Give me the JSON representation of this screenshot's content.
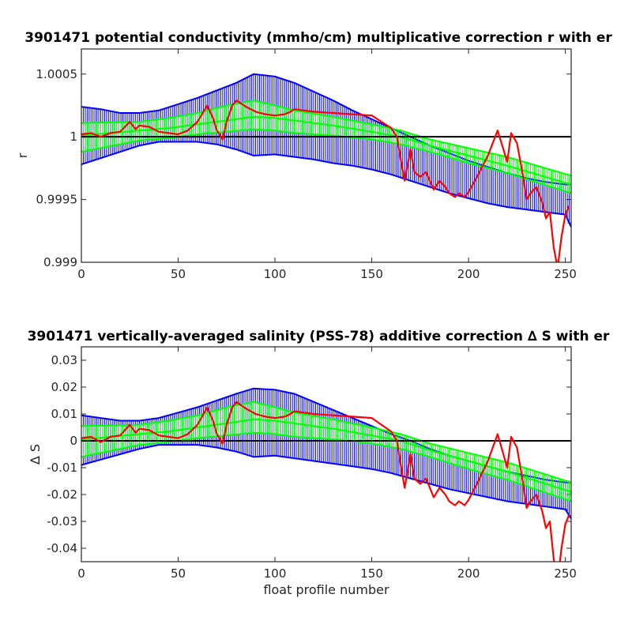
{
  "chart_data": [
    {
      "type": "line",
      "title": "3901471 potential conductivity (mmho/cm) multiplicative correction r with er",
      "xlabel": "",
      "ylabel": "r",
      "xlim": [
        0,
        253
      ],
      "ylim": [
        0.999,
        1.0007
      ],
      "xticks": [
        0,
        50,
        100,
        150,
        200,
        250
      ],
      "xtick_labels": [
        "0",
        "50",
        "100",
        "150",
        "200",
        "250"
      ],
      "yticks": [
        0.999,
        0.9995,
        1.0,
        1.0005
      ],
      "ytick_labels": [
        "0.999",
        "0.9995",
        "1",
        "1.0005"
      ],
      "reference_line": 1.0,
      "series": [
        {
          "role": "correction",
          "color": "#ff0000",
          "x": [
            0,
            5,
            10,
            15,
            20,
            25,
            28,
            30,
            35,
            40,
            45,
            50,
            55,
            60,
            65,
            68,
            70,
            73,
            75,
            78,
            80,
            85,
            90,
            95,
            100,
            105,
            108,
            110,
            120,
            130,
            140,
            150,
            155,
            160,
            163,
            165,
            167,
            170,
            172,
            175,
            178,
            180,
            182,
            185,
            188,
            190,
            193,
            195,
            198,
            200,
            205,
            210,
            215,
            218,
            220,
            222,
            225,
            228,
            230,
            232,
            235,
            238,
            240,
            242,
            244,
            246,
            248,
            250,
            252
          ],
          "y": [
            1.00002,
            1.00003,
            1.0,
            1.00003,
            1.00004,
            1.00012,
            1.00006,
            1.00009,
            1.00008,
            1.00004,
            1.00003,
            1.00002,
            1.00005,
            1.00012,
            1.00025,
            1.00015,
            1.00005,
            0.99998,
            1.00012,
            1.00025,
            1.00029,
            1.00024,
            1.0002,
            1.00018,
            1.00017,
            1.00018,
            1.0002,
            1.00022,
            1.0002,
            1.00019,
            1.00018,
            1.00017,
            1.00012,
            1.00007,
            1.0,
            0.99982,
            0.99965,
            0.9999,
            0.99972,
            0.99968,
            0.99972,
            0.99965,
            0.99958,
            0.99965,
            0.9996,
            0.99955,
            0.99952,
            0.99955,
            0.99952,
            0.99956,
            0.9997,
            0.99985,
            1.00005,
            0.9999,
            0.9998,
            1.00003,
            0.99995,
            0.9997,
            0.9995,
            0.99955,
            0.9996,
            0.99948,
            0.99935,
            0.9994,
            0.99912,
            0.99895,
            0.9992,
            0.99938,
            0.99945
          ]
        },
        {
          "role": "fit-mean",
          "color": "#00ff00",
          "x": [
            0,
            30,
            45,
            60,
            75,
            89,
            100,
            110,
            130,
            150,
            165,
            180,
            200,
            220,
            253
          ],
          "y": [
            1.00001,
            1.00005,
            1.00007,
            1.0001,
            1.00013,
            1.00016,
            1.00015,
            1.00013,
            1.00009,
            1.00004,
            1.0,
            0.99993,
            0.99985,
            0.99977,
            0.99962
          ]
        },
        {
          "role": "fit-spread-upper",
          "color": "#00ff00",
          "x": [
            0,
            30,
            45,
            60,
            75,
            89,
            100,
            110,
            130,
            150,
            165,
            180,
            200,
            220,
            253
          ],
          "y": [
            1.00011,
            1.00012,
            1.00015,
            1.00019,
            1.00025,
            1.00029,
            1.00025,
            1.00021,
            1.00016,
            1.0001,
            1.00005,
            0.99998,
            0.99991,
            0.99984,
            0.99969
          ]
        },
        {
          "role": "fit-spread-lower",
          "color": "#00ff00",
          "x": [
            0,
            30,
            45,
            60,
            75,
            89,
            100,
            110,
            130,
            150,
            165,
            180,
            200,
            220,
            253
          ],
          "y": [
            0.99988,
            0.99997,
            0.99999,
            1.00002,
            1.00004,
            1.00006,
            1.00005,
            1.00003,
            1.00001,
            0.99998,
            0.99994,
            0.99988,
            0.99979,
            0.99971,
            0.99955
          ]
        },
        {
          "role": "error-upper",
          "color": "#0000ff",
          "x": [
            0,
            10,
            20,
            30,
            40,
            50,
            60,
            70,
            80,
            89,
            100,
            110,
            120,
            130,
            140,
            150,
            160,
            170,
            180,
            190,
            200,
            210,
            220,
            230,
            240,
            250,
            253
          ],
          "y": [
            1.00024,
            1.00022,
            1.00019,
            1.00019,
            1.00021,
            1.00026,
            1.00031,
            1.00037,
            1.00043,
            1.0005,
            1.00048,
            1.00043,
            1.00036,
            1.00029,
            1.00021,
            1.00014,
            1.00007,
            1.0,
            0.99993,
            0.99987,
            0.99981,
            0.99976,
            0.99971,
            0.99967,
            0.99964,
            0.99962,
            0.99962
          ]
        },
        {
          "role": "error-lower",
          "color": "#0000ff",
          "x": [
            0,
            10,
            20,
            30,
            40,
            50,
            60,
            70,
            80,
            89,
            100,
            110,
            120,
            130,
            140,
            150,
            160,
            170,
            180,
            190,
            200,
            210,
            220,
            230,
            240,
            250,
            253
          ],
          "y": [
            0.99978,
            0.99983,
            0.99988,
            0.99993,
            0.99996,
            0.99996,
            0.99996,
            0.99994,
            0.9999,
            0.99985,
            0.99986,
            0.99984,
            0.99982,
            0.99979,
            0.99977,
            0.99974,
            0.9997,
            0.99965,
            0.9996,
            0.99955,
            0.99951,
            0.99947,
            0.99944,
            0.99942,
            0.9994,
            0.99938,
            0.99928
          ]
        }
      ]
    },
    {
      "type": "line",
      "title": "3901471 vertically-averaged salinity (PSS-78) additive correction ∆ S with er",
      "xlabel": "float profile number",
      "ylabel": "∆ S",
      "xlim": [
        0,
        253
      ],
      "ylim": [
        -0.045,
        0.035
      ],
      "xticks": [
        0,
        50,
        100,
        150,
        200,
        250
      ],
      "xtick_labels": [
        "0",
        "50",
        "100",
        "150",
        "200",
        "250"
      ],
      "yticks": [
        -0.04,
        -0.03,
        -0.02,
        -0.01,
        0,
        0.01,
        0.02,
        0.03
      ],
      "ytick_labels": [
        "-0.04",
        "-0.03",
        "-0.02",
        "-0.01",
        "0",
        "0.01",
        "0.02",
        "0.03"
      ],
      "reference_line": 0,
      "series": [
        {
          "role": "correction",
          "color": "#ff0000",
          "x": [
            0,
            5,
            10,
            15,
            20,
            25,
            28,
            30,
            35,
            40,
            45,
            50,
            55,
            60,
            65,
            68,
            70,
            73,
            75,
            78,
            80,
            85,
            90,
            95,
            100,
            105,
            108,
            110,
            120,
            130,
            140,
            150,
            155,
            160,
            163,
            165,
            167,
            170,
            172,
            175,
            178,
            180,
            182,
            185,
            188,
            190,
            193,
            195,
            198,
            200,
            205,
            210,
            215,
            218,
            220,
            222,
            225,
            228,
            230,
            232,
            235,
            238,
            240,
            242,
            244,
            246,
            248,
            250,
            252
          ],
          "y": [
            0.001,
            0.0015,
            -0.0005,
            0.0015,
            0.002,
            0.006,
            0.003,
            0.0045,
            0.004,
            0.002,
            0.0015,
            0.001,
            0.0025,
            0.006,
            0.0125,
            0.0075,
            0.0025,
            -0.001,
            0.006,
            0.0125,
            0.0145,
            0.012,
            0.01,
            0.009,
            0.0085,
            0.009,
            0.01,
            0.011,
            0.01,
            0.0095,
            0.009,
            0.0085,
            0.006,
            0.0035,
            0.0,
            -0.009,
            -0.0175,
            -0.005,
            -0.014,
            -0.016,
            -0.014,
            -0.0175,
            -0.021,
            -0.0175,
            -0.02,
            -0.0225,
            -0.024,
            -0.0225,
            -0.024,
            -0.022,
            -0.015,
            -0.0075,
            0.0025,
            -0.005,
            -0.01,
            0.0015,
            -0.0025,
            -0.015,
            -0.025,
            -0.0225,
            -0.02,
            -0.026,
            -0.0325,
            -0.03,
            -0.044,
            -0.0525,
            -0.04,
            -0.031,
            -0.0275
          ]
        },
        {
          "role": "fit-mean",
          "color": "#00ff00",
          "x": [
            0,
            30,
            45,
            60,
            75,
            89,
            100,
            110,
            130,
            150,
            165,
            180,
            200,
            220,
            253
          ],
          "y": [
            0.0005,
            0.0025,
            0.0035,
            0.005,
            0.0065,
            0.008,
            0.0075,
            0.0065,
            0.0045,
            0.002,
            0.0,
            -0.0035,
            -0.0075,
            -0.0115,
            -0.019
          ]
        },
        {
          "role": "fit-spread-upper",
          "color": "#00ff00",
          "x": [
            0,
            30,
            45,
            60,
            75,
            89,
            100,
            110,
            130,
            150,
            165,
            180,
            200,
            220,
            253
          ],
          "y": [
            0.0055,
            0.006,
            0.0075,
            0.0095,
            0.0125,
            0.0145,
            0.0125,
            0.0105,
            0.008,
            0.005,
            0.0025,
            -0.001,
            -0.0045,
            -0.008,
            -0.0155
          ]
        },
        {
          "role": "fit-spread-lower",
          "color": "#00ff00",
          "x": [
            0,
            30,
            45,
            60,
            75,
            89,
            100,
            110,
            130,
            150,
            165,
            180,
            200,
            220,
            253
          ],
          "y": [
            -0.006,
            -0.0015,
            -0.0005,
            0.001,
            0.002,
            0.003,
            0.0025,
            0.0015,
            0.0005,
            -0.001,
            -0.003,
            -0.006,
            -0.0105,
            -0.0145,
            -0.0225
          ]
        },
        {
          "role": "error-upper",
          "color": "#0000ff",
          "x": [
            0,
            10,
            20,
            30,
            40,
            50,
            60,
            70,
            80,
            89,
            100,
            110,
            120,
            130,
            140,
            150,
            160,
            170,
            180,
            190,
            200,
            210,
            220,
            230,
            240,
            250,
            253
          ],
          "y": [
            0.0095,
            0.0085,
            0.0075,
            0.0075,
            0.0085,
            0.0105,
            0.0125,
            0.015,
            0.0175,
            0.0195,
            0.019,
            0.0175,
            0.0145,
            0.0115,
            0.0085,
            0.0055,
            0.0025,
            0.0,
            -0.003,
            -0.0055,
            -0.0075,
            -0.0095,
            -0.0115,
            -0.013,
            -0.0145,
            -0.0155,
            -0.0155
          ]
        },
        {
          "role": "error-lower",
          "color": "#0000ff",
          "x": [
            0,
            10,
            20,
            30,
            40,
            50,
            60,
            70,
            80,
            89,
            100,
            110,
            120,
            130,
            140,
            150,
            160,
            170,
            180,
            190,
            200,
            210,
            220,
            230,
            240,
            250,
            253
          ],
          "y": [
            -0.009,
            -0.007,
            -0.005,
            -0.003,
            -0.0015,
            -0.0015,
            -0.0015,
            -0.0025,
            -0.004,
            -0.006,
            -0.0055,
            -0.0065,
            -0.0075,
            -0.0085,
            -0.0095,
            -0.0105,
            -0.012,
            -0.014,
            -0.016,
            -0.018,
            -0.0195,
            -0.021,
            -0.0225,
            -0.0235,
            -0.0245,
            -0.0255,
            -0.029
          ]
        }
      ]
    }
  ]
}
